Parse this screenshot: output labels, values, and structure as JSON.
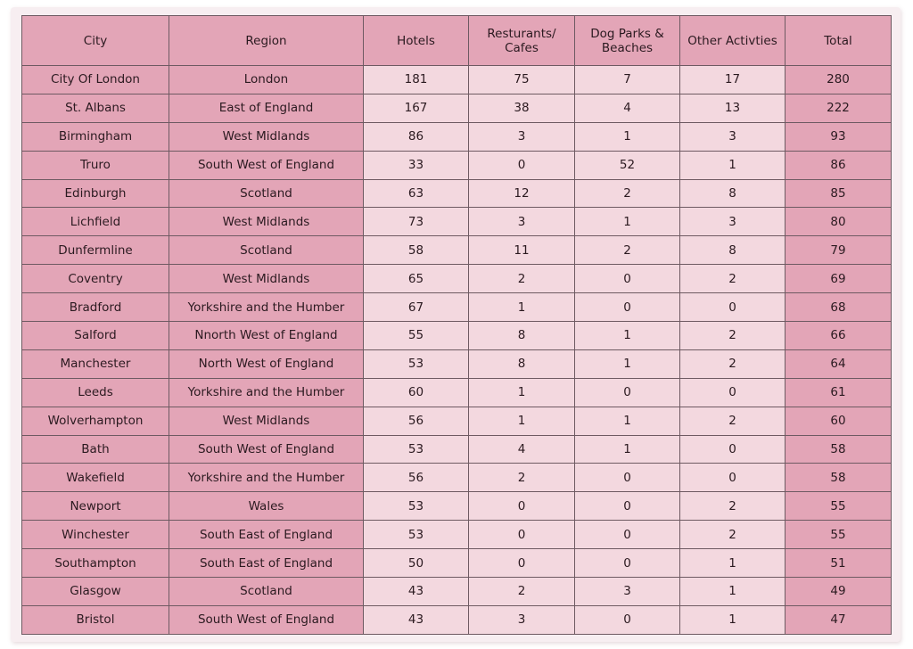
{
  "table": {
    "headers": [
      "City",
      "Region",
      "Hotels",
      "Resturants/ Cafes",
      "Dog Parks & Beaches",
      "Other Activties",
      "Total"
    ],
    "rows": [
      [
        "City Of London",
        "London",
        "181",
        "75",
        "7",
        "17",
        "280"
      ],
      [
        "St. Albans",
        "East of England",
        "167",
        "38",
        "4",
        "13",
        "222"
      ],
      [
        "Birmingham",
        "West Midlands",
        "86",
        "3",
        "1",
        "3",
        "93"
      ],
      [
        "Truro",
        "South West of England",
        "33",
        "0",
        "52",
        "1",
        "86"
      ],
      [
        "Edinburgh",
        "Scotland",
        "63",
        "12",
        "2",
        "8",
        "85"
      ],
      [
        "Lichfield",
        "West Midlands",
        "73",
        "3",
        "1",
        "3",
        "80"
      ],
      [
        "Dunfermline",
        "Scotland",
        "58",
        "11",
        "2",
        "8",
        "79"
      ],
      [
        "Coventry",
        "West Midlands",
        "65",
        "2",
        "0",
        "2",
        "69"
      ],
      [
        "Bradford",
        "Yorkshire and the Humber",
        "67",
        "1",
        "0",
        "0",
        "68"
      ],
      [
        "Salford",
        "Nnorth West of England",
        "55",
        "8",
        "1",
        "2",
        "66"
      ],
      [
        "Manchester",
        "North West of England",
        "53",
        "8",
        "1",
        "2",
        "64"
      ],
      [
        "Leeds",
        "Yorkshire and the Humber",
        "60",
        "1",
        "0",
        "0",
        "61"
      ],
      [
        "Wolverhampton",
        "West Midlands",
        "56",
        "1",
        "1",
        "2",
        "60"
      ],
      [
        "Bath",
        "South West of England",
        "53",
        "4",
        "1",
        "0",
        "58"
      ],
      [
        "Wakefield",
        "Yorkshire and the Humber",
        "56",
        "2",
        "0",
        "0",
        "58"
      ],
      [
        "Newport",
        "Wales",
        "53",
        "0",
        "0",
        "2",
        "55"
      ],
      [
        "Winchester",
        "South East of England",
        "53",
        "0",
        "0",
        "2",
        "55"
      ],
      [
        "Southampton",
        "South East of England",
        "50",
        "0",
        "0",
        "1",
        "51"
      ],
      [
        "Glasgow",
        "Scotland",
        "43",
        "2",
        "3",
        "1",
        "49"
      ],
      [
        "Bristol",
        "South West of England",
        "43",
        "3",
        "0",
        "1",
        "47"
      ]
    ]
  },
  "colors": {
    "dark_cell": "#e3a5b7",
    "light_cell": "#f3d8df",
    "border": "#6e5a62",
    "paper": "#f7eef1"
  }
}
